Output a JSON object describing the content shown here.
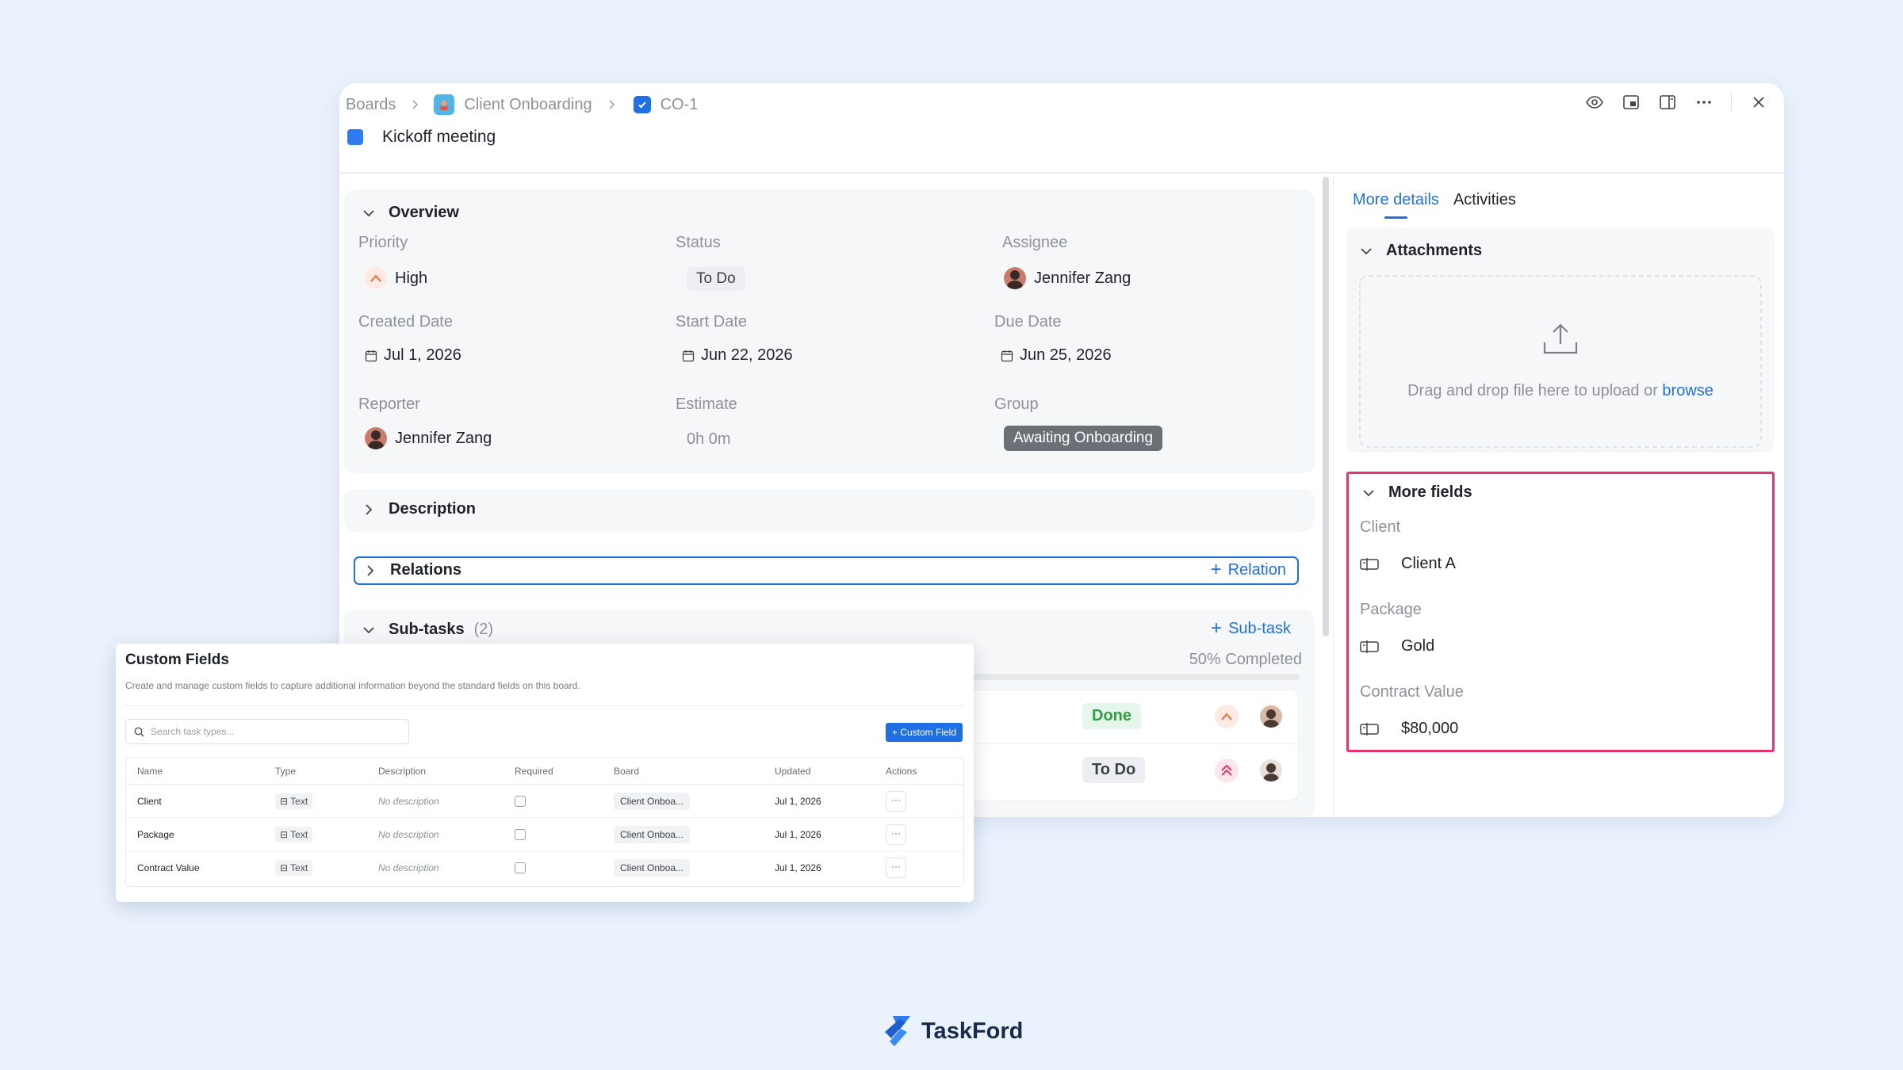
{
  "breadcrumb": {
    "boards": "Boards",
    "project": "Client Onboarding",
    "task_id": "CO-1"
  },
  "task": {
    "title": "Kickoff meeting",
    "color": "#2f7bf0"
  },
  "overview": {
    "heading": "Overview",
    "priority": {
      "label": "Priority",
      "value": "High"
    },
    "status": {
      "label": "Status",
      "value": "To Do"
    },
    "assignee": {
      "label": "Assignee",
      "value": "Jennifer Zang"
    },
    "created": {
      "label": "Created Date",
      "value": "Jul 1, 2026"
    },
    "start": {
      "label": "Start Date",
      "value": "Jun 22, 2026"
    },
    "due": {
      "label": "Due Date",
      "value": "Jun 25, 2026"
    },
    "reporter": {
      "label": "Reporter",
      "value": "Jennifer Zang"
    },
    "estimate": {
      "label": "Estimate",
      "value": "0h 0m"
    },
    "group": {
      "label": "Group",
      "value": "Awaiting Onboarding"
    }
  },
  "description": {
    "heading": "Description"
  },
  "relations": {
    "heading": "Relations",
    "add": "Relation"
  },
  "subtasks": {
    "heading": "Sub-tasks",
    "count": "(2)",
    "add": "Sub-task",
    "progress_text": "50% Completed",
    "progress": 0.5,
    "rows": [
      {
        "status": "Done"
      },
      {
        "status": "To Do"
      }
    ]
  },
  "right_panel": {
    "tabs": [
      "More details",
      "Activities"
    ],
    "attachments": {
      "heading": "Attachments",
      "drop_text": "Drag and drop file here to upload or",
      "browse": "browse"
    },
    "more_fields": {
      "heading": "More fields",
      "fields": [
        {
          "label": "Client",
          "value": "Client A"
        },
        {
          "label": "Package",
          "value": "Gold"
        },
        {
          "label": "Contract Value",
          "value": "$80,000"
        }
      ]
    }
  },
  "custom_fields_modal": {
    "title": "Custom Fields",
    "subtitle": "Create and manage custom fields to capture additional information beyond the standard fields on this board.",
    "search_placeholder": "Search task types...",
    "add_button": "+ Custom Field",
    "columns": [
      "Name",
      "Type",
      "Description",
      "Required",
      "Board",
      "Updated",
      "Actions"
    ],
    "rows": [
      {
        "name": "Client",
        "type": "Text",
        "description": "No description",
        "board": "Client Onboa...",
        "updated": "Jul 1, 2026",
        "actions": "···"
      },
      {
        "name": "Package",
        "type": "Text",
        "description": "No description",
        "board": "Client Onboa...",
        "updated": "Jul 1, 2026",
        "actions": "···"
      },
      {
        "name": "Contract Value",
        "type": "Text",
        "description": "No description",
        "board": "Client Onboa...",
        "updated": "Jul 1, 2026",
        "actions": "···"
      }
    ]
  },
  "logo": {
    "text": "TaskFord"
  },
  "colors": {
    "accent": "#1f6fe5",
    "highlight": "#e8336e",
    "background": "#eaf2fd"
  }
}
